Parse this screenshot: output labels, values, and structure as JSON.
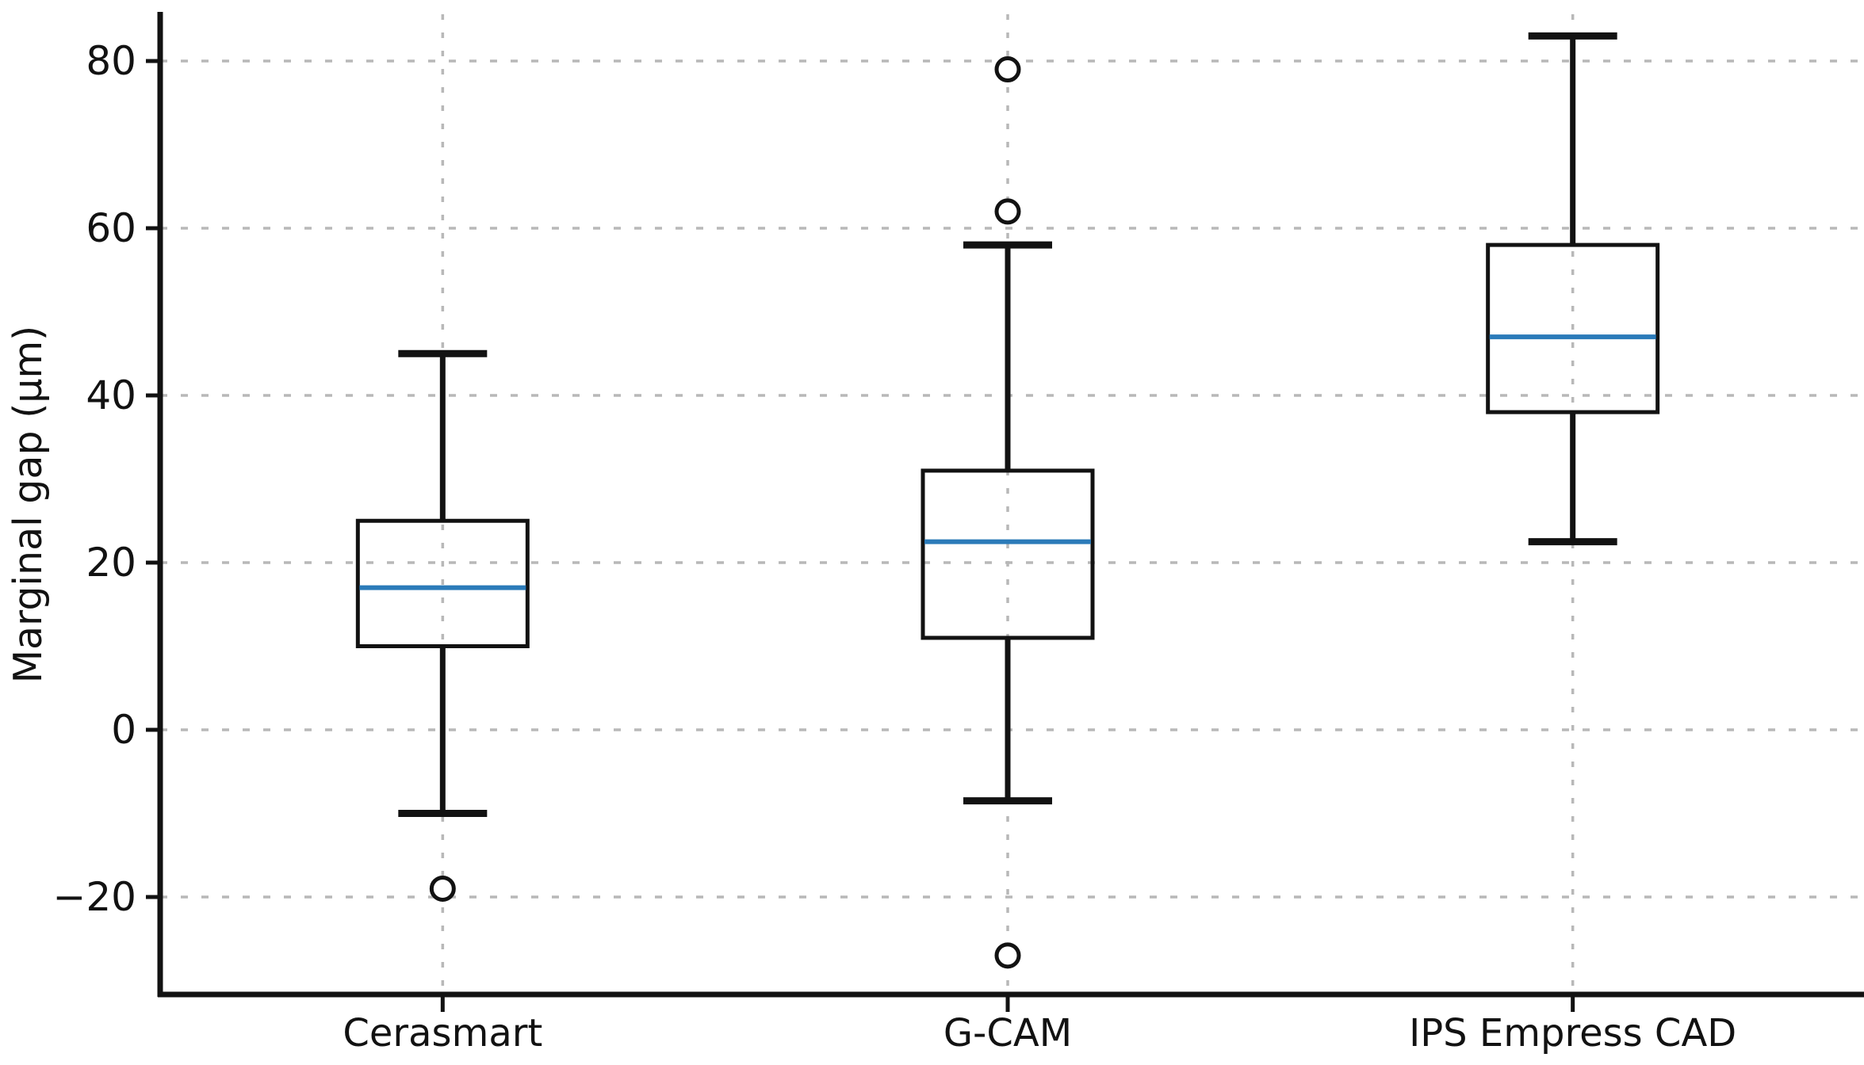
{
  "chart_data": {
    "type": "boxplot",
    "title": "",
    "xlabel": "",
    "ylabel": "Marginal gap (μm)",
    "categories": [
      "Cerasmart",
      "G-CAM",
      "IPS Empress CAD"
    ],
    "series": [
      {
        "name": "Cerasmart",
        "whisker_low": -10,
        "q1": 10,
        "median": 17,
        "q3": 25,
        "whisker_high": 45,
        "outliers": [
          -19
        ]
      },
      {
        "name": "G-CAM",
        "whisker_low": -8.5,
        "q1": 11,
        "median": 22.5,
        "q3": 31,
        "whisker_high": 58,
        "outliers": [
          79,
          62,
          -27
        ]
      },
      {
        "name": "IPS Empress CAD",
        "whisker_low": 22.5,
        "q1": 38,
        "median": 47,
        "q3": 58,
        "whisker_high": 83,
        "outliers": []
      }
    ],
    "yticks": [
      -20,
      0,
      20,
      40,
      60,
      80
    ],
    "ytick_labels": [
      "−20",
      "0",
      "20",
      "40",
      "60",
      "80"
    ],
    "ylim": [
      -32,
      85.6
    ],
    "grid": {
      "horizontal": true,
      "vertical": true,
      "line_style": "dotted"
    },
    "legend_position": "none"
  },
  "style": {
    "background": "#ffffff",
    "axis_color": "#121212",
    "box_color": "#121212",
    "median_color": "#2b7bb9",
    "grid_color": "#b8b8b8",
    "outlier_fill": "#ffffff",
    "text_color": "#121212"
  }
}
